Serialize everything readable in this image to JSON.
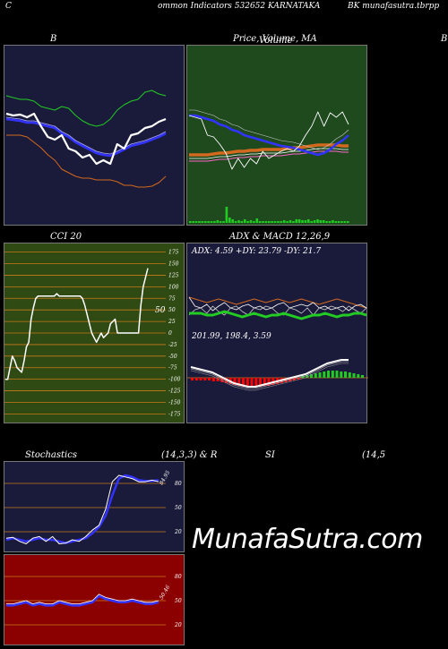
{
  "header": {
    "left": "C",
    "middle": "ommon  Indicators 532652  KARNATAKA",
    "right": "BK munafasutra.tbrpp"
  },
  "titles": {
    "bb": "B",
    "price": "Price,  Volume,  MA",
    "price_overlay": "Volume",
    "b_right": "B",
    "cci": "CCI 20",
    "adx_macd": "ADX  & MACD 12,26,9",
    "stoch": "Stochastics",
    "stoch_params": "(14,3,3) & R",
    "si": "SI",
    "si_params": "(14,5"
  },
  "adx_label": "ADX: 4.59  +DY: 23.79  -DY: 21.7",
  "macd_label": "201.99,  198.4,  3.59",
  "cci_value_label": "50",
  "watermark": "MunafaSutra.com",
  "colors": {
    "bb_bg": "#1a1a3a",
    "price_bg": "#1e4a1e",
    "cci_bg": "#2f4a12",
    "adx_bg": "#1a1a3a",
    "stoch_bg": "#1a1a3a",
    "rsi_bg": "#8b0000",
    "grid_line": "#c87a1a",
    "white": "#ffffff",
    "blue": "#3333ff",
    "green": "#22cc22",
    "orange": "#d2691e",
    "red": "#ff0000"
  },
  "chart_data": [
    {
      "type": "line",
      "name": "bollinger",
      "title": "B",
      "series": [
        {
          "name": "close",
          "values": [
            126,
            128,
            127,
            130,
            126,
            140,
            152,
            155,
            150,
            165,
            168,
            175,
            172,
            182,
            178,
            182,
            160,
            165,
            150,
            148,
            142,
            140,
            135,
            132
          ]
        },
        {
          "name": "upper",
          "values": [
            106,
            108,
            110,
            110,
            112,
            118,
            120,
            122,
            118,
            120,
            128,
            134,
            138,
            140,
            138,
            132,
            122,
            116,
            112,
            110,
            102,
            100,
            104,
            106
          ]
        },
        {
          "name": "middle",
          "values": [
            132,
            133,
            134,
            136,
            136,
            138,
            140,
            142,
            148,
            152,
            158,
            162,
            166,
            170,
            172,
            173,
            170,
            166,
            162,
            160,
            158,
            155,
            152,
            148
          ]
        },
        {
          "name": "lower",
          "values": [
            150,
            150,
            150,
            152,
            158,
            164,
            172,
            178,
            188,
            192,
            196,
            198,
            198,
            200,
            200,
            200,
            202,
            206,
            206,
            208,
            208,
            207,
            203,
            196
          ]
        }
      ]
    },
    {
      "type": "line",
      "name": "price-volume-ma",
      "title": "Price,  Volume,  MA",
      "series": [
        {
          "name": "close",
          "values": [
            128,
            130,
            132,
            150,
            152,
            160,
            170,
            188,
            176,
            186,
            176,
            182,
            168,
            176,
            172,
            168,
            165,
            168,
            162,
            150,
            140,
            124,
            140,
            125,
            130,
            124,
            138
          ]
        },
        {
          "name": "ma-blue",
          "values": [
            128,
            128,
            130,
            132,
            134,
            138,
            140,
            144,
            146,
            150,
            152,
            154,
            156,
            158,
            160,
            162,
            163,
            164,
            166,
            168,
            170,
            172,
            170,
            166,
            160,
            156,
            150
          ]
        },
        {
          "name": "ma-orange",
          "values": [
            172,
            172,
            172,
            172,
            171,
            170,
            170,
            169,
            168,
            168,
            167,
            167,
            166,
            166,
            166,
            166,
            165,
            164,
            164,
            163,
            162,
            161,
            161,
            161,
            161,
            162,
            162
          ]
        }
      ],
      "volume": [
        2,
        2,
        2,
        2,
        2,
        2,
        2,
        2,
        2,
        3,
        2,
        2,
        18,
        6,
        4,
        2,
        3,
        2,
        4,
        2,
        3,
        2,
        5,
        2,
        2,
        2,
        2,
        2,
        2,
        2,
        2,
        3,
        2,
        3,
        2,
        4,
        4,
        3,
        3,
        4,
        2,
        3,
        4,
        3,
        3,
        2,
        2,
        3,
        2,
        2,
        2,
        2,
        2
      ]
    },
    {
      "type": "line",
      "name": "cci",
      "title": "CCI 20",
      "yticks": [
        175,
        150,
        125,
        100,
        75,
        50,
        25,
        0,
        -25,
        -50,
        -75,
        -100,
        -125,
        -150,
        -175
      ],
      "ylim": [
        -175,
        175
      ],
      "values": [
        -100,
        -100,
        -75,
        -50,
        -60,
        -75,
        -80,
        -85,
        -60,
        -30,
        -20,
        30,
        55,
        75,
        80,
        80,
        80,
        80,
        80,
        80,
        80,
        80,
        85,
        80,
        80,
        80,
        80,
        80,
        80,
        80,
        80,
        80,
        80,
        75,
        60,
        40,
        20,
        0,
        -10,
        -20,
        -10,
        0,
        -10,
        -5,
        0,
        20,
        25,
        30,
        0,
        0,
        0,
        0,
        0,
        0,
        0,
        0,
        0,
        0,
        60,
        100,
        120,
        140
      ]
    },
    {
      "type": "line",
      "name": "adx-macd",
      "title": "ADX  & MACD 12,26,9",
      "adx": 4.59,
      "plus_di": 23.79,
      "minus_di": 21.7,
      "macd": 201.99,
      "signal": 198.4,
      "histogram": 3.59
    },
    {
      "type": "line",
      "name": "stochastics",
      "title": "Stochastics",
      "yticks": [
        80,
        50,
        20
      ],
      "ylim": [
        0,
        100
      ],
      "series": [
        {
          "name": "k",
          "values": [
            12,
            13,
            8,
            5,
            12,
            14,
            8,
            14,
            5,
            6,
            10,
            8,
            14,
            22,
            28,
            48,
            82,
            90,
            88,
            86,
            82,
            82,
            84,
            82
          ]
        },
        {
          "name": "d",
          "values": [
            10,
            12,
            10,
            8,
            10,
            12,
            10,
            10,
            8,
            6,
            8,
            10,
            12,
            18,
            26,
            40,
            65,
            86,
            90,
            88,
            84,
            83,
            83,
            84
          ]
        }
      ],
      "value_label": "84.95"
    },
    {
      "type": "line",
      "name": "rsi",
      "title": "SI",
      "yticks": [
        80,
        50,
        20
      ],
      "ylim": [
        0,
        100
      ],
      "series": [
        {
          "name": "rsi",
          "values": [
            44,
            44,
            46,
            48,
            44,
            46,
            44,
            44,
            48,
            46,
            44,
            44,
            46,
            48,
            56,
            52,
            50,
            48,
            48,
            50,
            48,
            46,
            46,
            48
          ]
        }
      ],
      "value_label": "50.46"
    }
  ]
}
